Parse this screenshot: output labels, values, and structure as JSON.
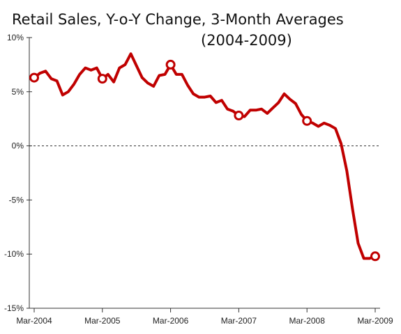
{
  "chart_data": {
    "type": "line",
    "title": "Retail Sales, Y-o-Y Change, 3-Month Averages",
    "subtitle": "(2004-2009)",
    "xlabel": "",
    "ylabel": "",
    "ylim": [
      -15,
      10
    ],
    "y_ticks": [
      {
        "value": 10,
        "label": "10%"
      },
      {
        "value": 5,
        "label": "5%"
      },
      {
        "value": 0,
        "label": "0%"
      },
      {
        "value": -5,
        "label": "-5%"
      },
      {
        "value": -10,
        "label": "-10%"
      },
      {
        "value": -15,
        "label": "-15%"
      }
    ],
    "x_ticks": [
      "Mar-2004",
      "Mar-2005",
      "Mar-2006",
      "Mar-2007",
      "Mar-2008",
      "Mar-2009"
    ],
    "x": [
      "Mar-2004",
      "Apr-2004",
      "May-2004",
      "Jun-2004",
      "Jul-2004",
      "Aug-2004",
      "Sep-2004",
      "Oct-2004",
      "Nov-2004",
      "Dec-2004",
      "Jan-2005",
      "Feb-2005",
      "Mar-2005",
      "Apr-2005",
      "May-2005",
      "Jun-2005",
      "Jul-2005",
      "Aug-2005",
      "Sep-2005",
      "Oct-2005",
      "Nov-2005",
      "Dec-2005",
      "Jan-2006",
      "Feb-2006",
      "Mar-2006",
      "Apr-2006",
      "May-2006",
      "Jun-2006",
      "Jul-2006",
      "Aug-2006",
      "Sep-2006",
      "Oct-2006",
      "Nov-2006",
      "Dec-2006",
      "Jan-2007",
      "Feb-2007",
      "Mar-2007",
      "Apr-2007",
      "May-2007",
      "Jun-2007",
      "Jul-2007",
      "Aug-2007",
      "Sep-2007",
      "Oct-2007",
      "Nov-2007",
      "Dec-2007",
      "Jan-2008",
      "Feb-2008",
      "Mar-2008",
      "Apr-2008",
      "May-2008",
      "Jun-2008",
      "Jul-2008",
      "Aug-2008",
      "Sep-2008",
      "Oct-2008",
      "Nov-2008",
      "Dec-2008",
      "Jan-2009",
      "Feb-2009",
      "Mar-2009"
    ],
    "series": [
      {
        "values": [
          6.3,
          6.7,
          6.9,
          6.2,
          6.0,
          4.7,
          5.0,
          5.7,
          6.6,
          7.2,
          7.0,
          7.2,
          6.2,
          6.6,
          5.9,
          7.2,
          7.5,
          8.5,
          7.4,
          6.3,
          5.8,
          5.5,
          6.5,
          6.6,
          7.5,
          6.6,
          6.6,
          5.6,
          4.8,
          4.5,
          4.5,
          4.6,
          4.0,
          4.2,
          3.4,
          3.2,
          2.8,
          2.7,
          3.3,
          3.3,
          3.4,
          3.0,
          3.5,
          4.0,
          4.8,
          4.3,
          3.9,
          2.9,
          2.3,
          2.1,
          1.8,
          2.1,
          1.9,
          1.6,
          0.2,
          -2.3,
          -5.8,
          -9.0,
          -10.4,
          -10.4,
          -10.2
        ],
        "color": "#c00000",
        "marker_labels": [
          "Mar-2004",
          "Mar-2005",
          "Mar-2006",
          "Mar-2007",
          "Mar-2008",
          "Mar-2009"
        ]
      }
    ],
    "grid": false,
    "reference_line": {
      "value": 0,
      "style": "dashed"
    },
    "legend": "none"
  }
}
